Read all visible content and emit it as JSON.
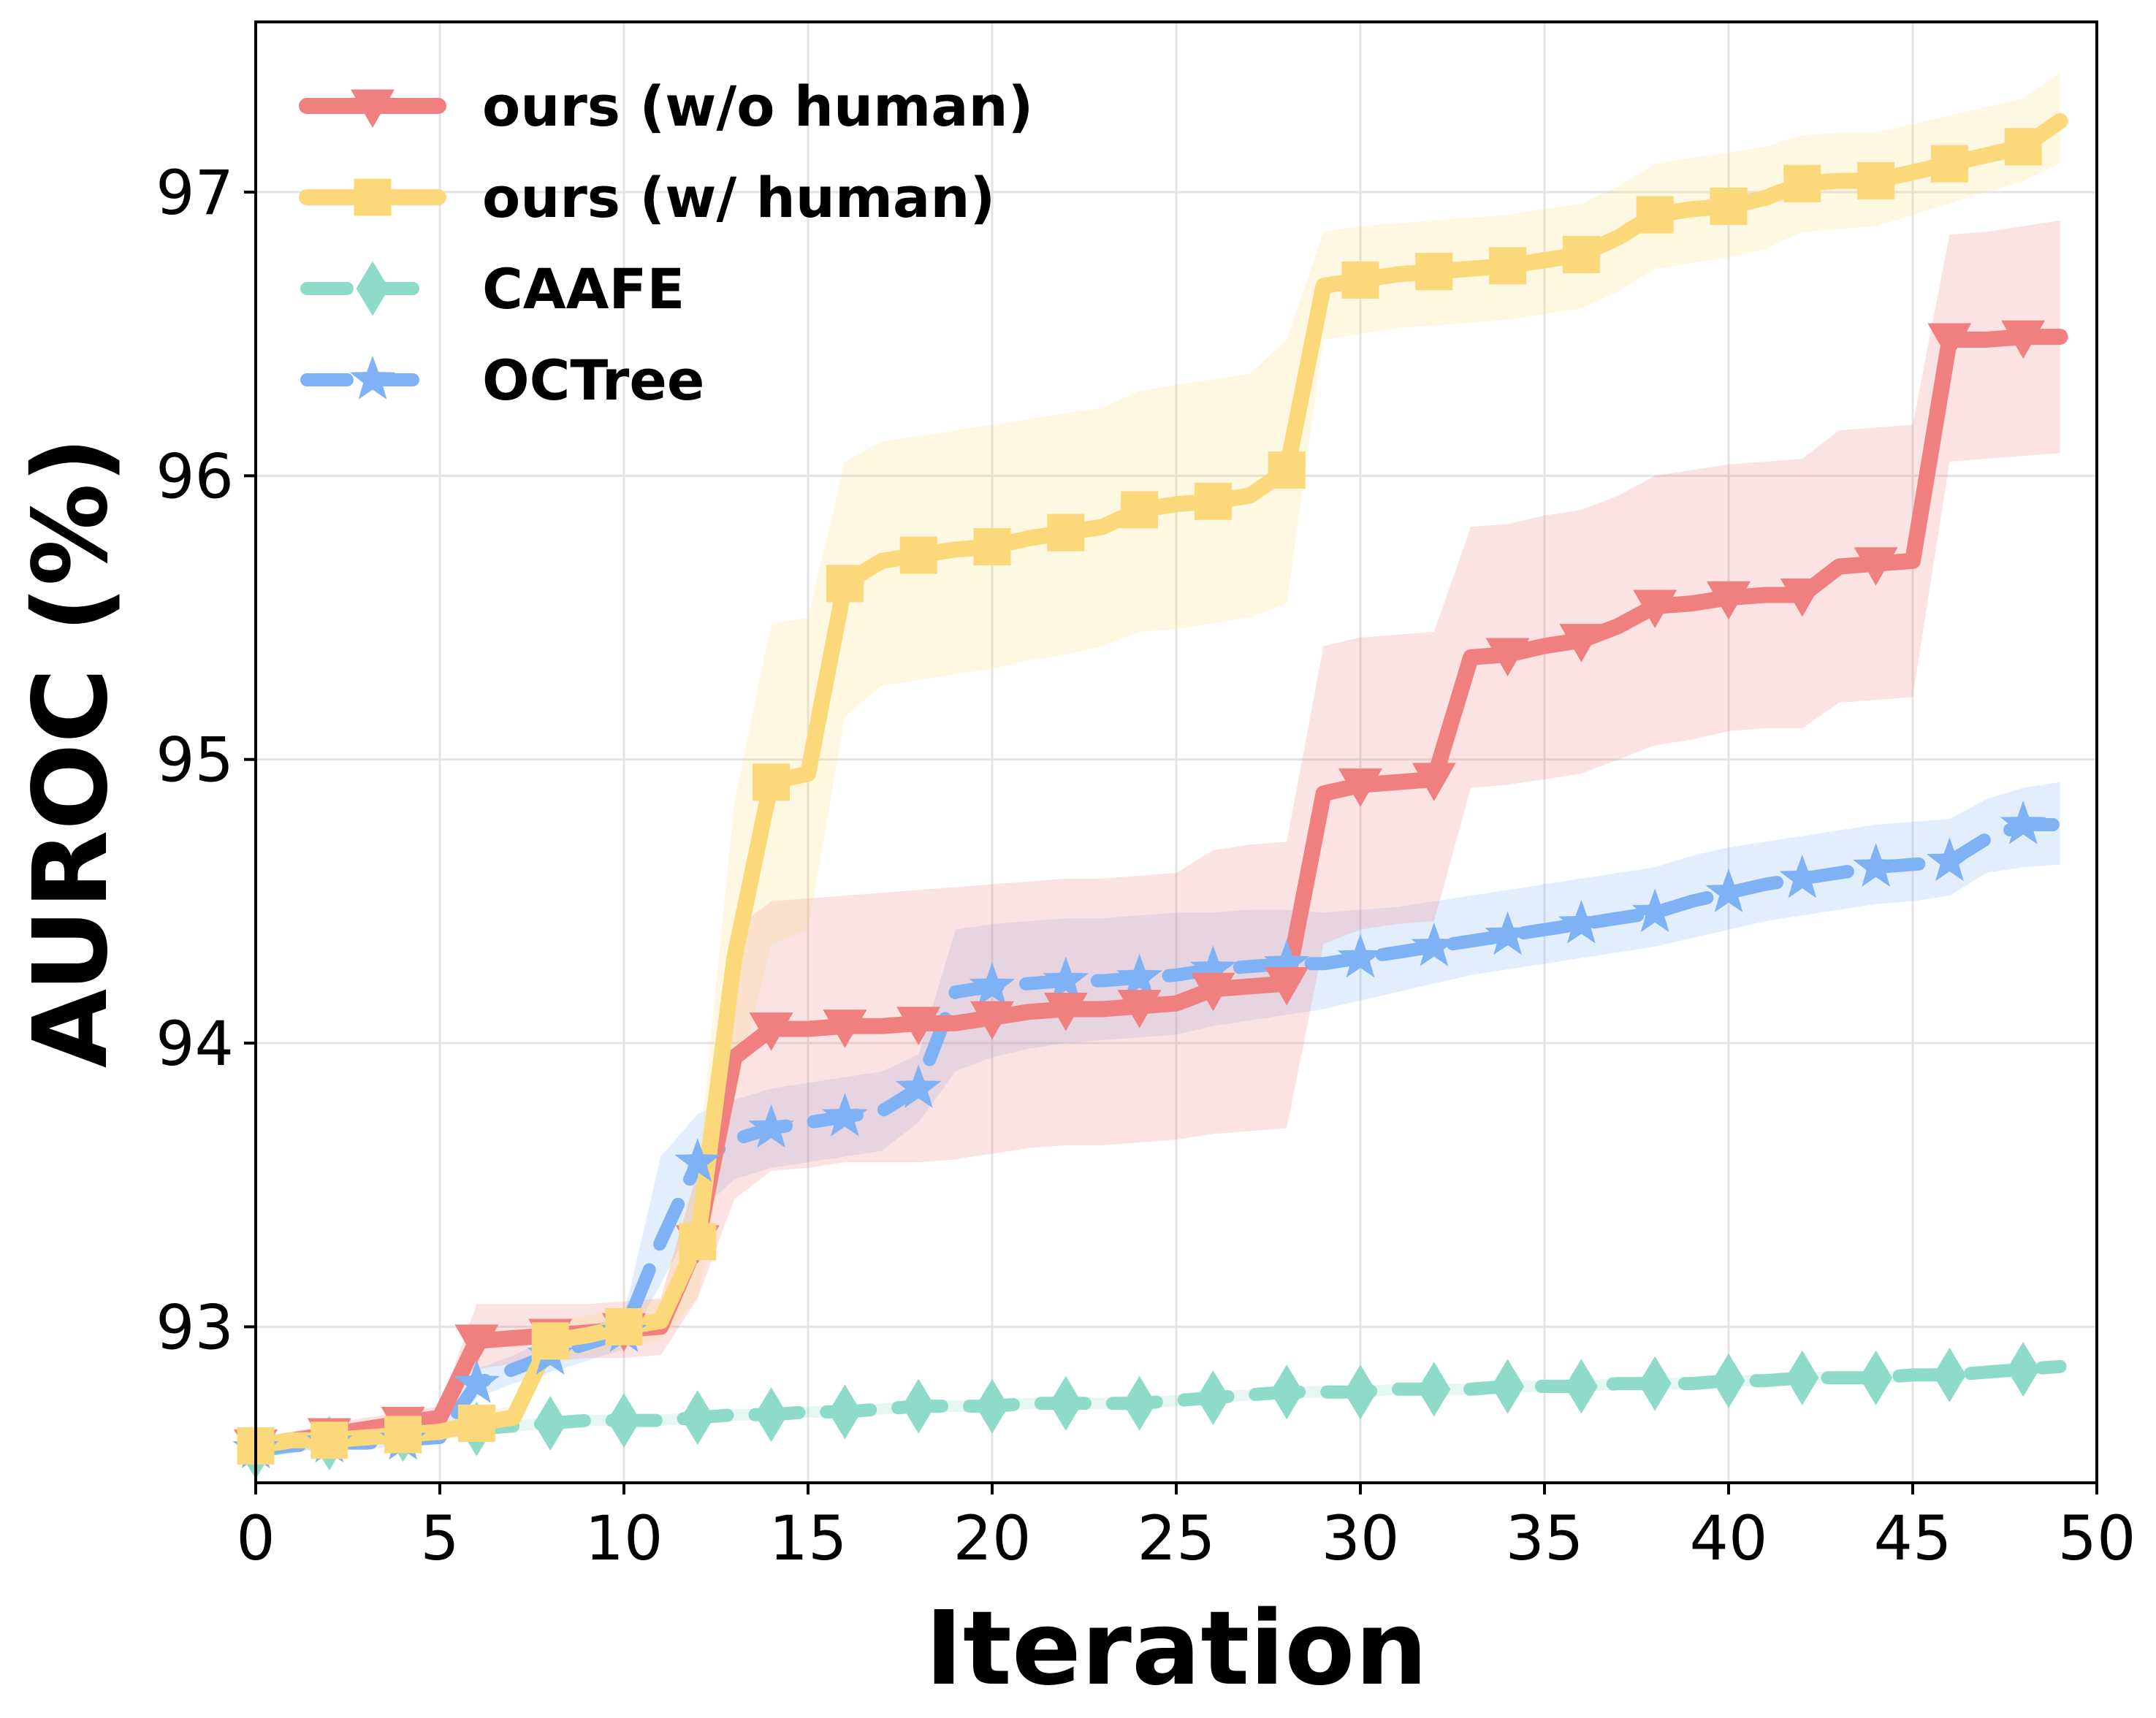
{
  "chart_data": {
    "type": "line",
    "xlabel": "Iteration",
    "ylabel": "AUROC (%)",
    "xlim": [
      0,
      50
    ],
    "ylim": [
      92.45,
      97.6
    ],
    "xticks": [
      0,
      5,
      10,
      15,
      20,
      25,
      30,
      35,
      40,
      45,
      50
    ],
    "yticks": [
      93,
      94,
      95,
      96,
      97
    ],
    "grid": true,
    "legend_position": "top-left",
    "series": [
      {
        "name": "ours (w/o human)",
        "color": "#f08080",
        "marker": "triangle-down",
        "line_style": "solid",
        "x": [
          0,
          1,
          2,
          3,
          4,
          5,
          6,
          7,
          8,
          9,
          10,
          11,
          12,
          13,
          14,
          15,
          16,
          17,
          18,
          19,
          20,
          21,
          22,
          23,
          24,
          25,
          26,
          27,
          28,
          29,
          30,
          31,
          32,
          33,
          34,
          35,
          36,
          37,
          38,
          39,
          40,
          41,
          42,
          43,
          44,
          45,
          46,
          47,
          48,
          49
        ],
        "y": [
          92.58,
          92.6,
          92.62,
          92.64,
          92.66,
          92.68,
          92.95,
          92.96,
          92.97,
          92.98,
          92.99,
          93.0,
          93.3,
          93.95,
          94.05,
          94.05,
          94.06,
          94.06,
          94.07,
          94.07,
          94.09,
          94.11,
          94.12,
          94.12,
          94.13,
          94.14,
          94.19,
          94.2,
          94.21,
          94.88,
          94.91,
          94.92,
          94.93,
          95.36,
          95.37,
          95.4,
          95.42,
          95.47,
          95.54,
          95.55,
          95.57,
          95.58,
          95.58,
          95.68,
          95.69,
          95.7,
          96.48,
          96.48,
          96.49,
          96.49
        ],
        "band_lower": [
          92.55,
          92.57,
          92.58,
          92.6,
          92.62,
          92.64,
          92.85,
          92.87,
          92.88,
          92.89,
          92.89,
          92.9,
          93.1,
          93.45,
          93.55,
          93.56,
          93.58,
          93.58,
          93.58,
          93.59,
          93.61,
          93.63,
          93.64,
          93.64,
          93.65,
          93.66,
          93.68,
          93.69,
          93.7,
          94.35,
          94.4,
          94.42,
          94.43,
          94.9,
          94.91,
          94.93,
          94.95,
          95.0,
          95.05,
          95.07,
          95.1,
          95.11,
          95.11,
          95.2,
          95.21,
          95.22,
          96.05,
          96.06,
          96.07,
          96.08
        ],
        "band_upper": [
          92.61,
          92.63,
          92.66,
          92.68,
          92.7,
          92.72,
          93.08,
          93.08,
          93.08,
          93.08,
          93.09,
          93.1,
          93.55,
          94.4,
          94.5,
          94.51,
          94.52,
          94.53,
          94.54,
          94.55,
          94.56,
          94.57,
          94.58,
          94.58,
          94.59,
          94.6,
          94.68,
          94.7,
          94.71,
          95.4,
          95.43,
          95.44,
          95.45,
          95.82,
          95.83,
          95.86,
          95.88,
          95.93,
          96.0,
          96.02,
          96.04,
          96.05,
          96.06,
          96.16,
          96.17,
          96.18,
          96.85,
          96.86,
          96.88,
          96.9
        ]
      },
      {
        "name": "ours (w/ human)",
        "color": "#fbd97a",
        "marker": "square",
        "line_style": "solid",
        "x": [
          0,
          1,
          2,
          3,
          4,
          5,
          6,
          7,
          8,
          9,
          10,
          11,
          12,
          13,
          14,
          15,
          16,
          17,
          18,
          19,
          20,
          21,
          22,
          23,
          24,
          25,
          26,
          27,
          28,
          29,
          30,
          31,
          32,
          33,
          34,
          35,
          36,
          37,
          38,
          39,
          40,
          41,
          42,
          43,
          44,
          45,
          46,
          47,
          48,
          49
        ],
        "y": [
          92.58,
          92.6,
          92.6,
          92.61,
          92.62,
          92.63,
          92.66,
          92.68,
          92.95,
          92.97,
          93.0,
          93.02,
          93.3,
          94.3,
          94.92,
          94.95,
          95.62,
          95.7,
          95.72,
          95.74,
          95.75,
          95.78,
          95.8,
          95.82,
          95.88,
          95.9,
          95.91,
          95.93,
          96.02,
          96.67,
          96.69,
          96.71,
          96.72,
          96.73,
          96.74,
          96.76,
          96.78,
          96.84,
          96.92,
          96.94,
          96.95,
          96.98,
          97.03,
          97.04,
          97.04,
          97.07,
          97.1,
          97.13,
          97.16,
          97.25
        ],
        "band_lower": [
          92.55,
          92.57,
          92.57,
          92.58,
          92.59,
          92.6,
          92.62,
          92.64,
          92.88,
          92.9,
          92.93,
          92.95,
          93.1,
          93.8,
          94.35,
          94.4,
          95.15,
          95.26,
          95.28,
          95.3,
          95.32,
          95.35,
          95.37,
          95.4,
          95.45,
          95.46,
          95.48,
          95.5,
          95.55,
          96.48,
          96.5,
          96.52,
          96.53,
          96.54,
          96.55,
          96.57,
          96.59,
          96.65,
          96.73,
          96.75,
          96.77,
          96.8,
          96.86,
          96.87,
          96.88,
          96.92,
          96.96,
          97.0,
          97.04,
          97.1
        ],
        "band_upper": [
          92.61,
          92.63,
          92.63,
          92.64,
          92.65,
          92.66,
          92.7,
          92.72,
          93.02,
          93.04,
          93.07,
          93.1,
          93.55,
          94.85,
          95.48,
          95.5,
          96.05,
          96.12,
          96.14,
          96.16,
          96.18,
          96.2,
          96.22,
          96.24,
          96.3,
          96.32,
          96.34,
          96.36,
          96.48,
          96.86,
          96.88,
          96.89,
          96.9,
          96.91,
          96.92,
          96.94,
          96.96,
          97.02,
          97.1,
          97.12,
          97.14,
          97.16,
          97.2,
          97.21,
          97.21,
          97.24,
          97.27,
          97.3,
          97.33,
          97.42
        ]
      },
      {
        "name": "CAAFE",
        "color": "#8fdbc9",
        "marker": "diamond",
        "line_style": "dashed",
        "x": [
          0,
          1,
          2,
          3,
          4,
          5,
          6,
          7,
          8,
          9,
          10,
          11,
          12,
          13,
          14,
          15,
          16,
          17,
          18,
          19,
          20,
          21,
          22,
          23,
          24,
          25,
          26,
          27,
          28,
          29,
          30,
          31,
          32,
          33,
          34,
          35,
          36,
          37,
          38,
          39,
          40,
          41,
          42,
          43,
          44,
          45,
          46,
          47,
          48,
          49
        ],
        "y": [
          92.56,
          92.58,
          92.59,
          92.61,
          92.62,
          92.63,
          92.64,
          92.65,
          92.66,
          92.67,
          92.67,
          92.67,
          92.68,
          92.69,
          92.69,
          92.7,
          92.7,
          92.71,
          92.72,
          92.72,
          92.72,
          92.73,
          92.73,
          92.73,
          92.73,
          92.74,
          92.75,
          92.76,
          92.77,
          92.77,
          92.77,
          92.78,
          92.78,
          92.78,
          92.79,
          92.79,
          92.79,
          92.8,
          92.8,
          92.8,
          92.81,
          92.81,
          92.82,
          92.82,
          92.82,
          92.83,
          92.83,
          92.84,
          92.85,
          92.86
        ],
        "band_lower": [
          92.54,
          92.56,
          92.57,
          92.59,
          92.6,
          92.61,
          92.62,
          92.63,
          92.64,
          92.65,
          92.65,
          92.65,
          92.66,
          92.67,
          92.67,
          92.68,
          92.68,
          92.69,
          92.7,
          92.7,
          92.7,
          92.71,
          92.71,
          92.71,
          92.71,
          92.72,
          92.73,
          92.74,
          92.75,
          92.75,
          92.75,
          92.76,
          92.76,
          92.76,
          92.77,
          92.77,
          92.77,
          92.78,
          92.78,
          92.78,
          92.79,
          92.79,
          92.8,
          92.8,
          92.8,
          92.81,
          92.81,
          92.82,
          92.83,
          92.84
        ],
        "band_upper": [
          92.58,
          92.6,
          92.61,
          92.63,
          92.64,
          92.65,
          92.66,
          92.67,
          92.68,
          92.69,
          92.69,
          92.69,
          92.7,
          92.71,
          92.71,
          92.72,
          92.72,
          92.73,
          92.74,
          92.74,
          92.74,
          92.75,
          92.75,
          92.75,
          92.75,
          92.76,
          92.77,
          92.78,
          92.79,
          92.79,
          92.79,
          92.8,
          92.8,
          92.8,
          92.81,
          92.81,
          92.81,
          92.82,
          92.82,
          92.82,
          92.83,
          92.83,
          92.84,
          92.84,
          92.84,
          92.85,
          92.85,
          92.86,
          92.87,
          92.88
        ]
      },
      {
        "name": "OCTree",
        "color": "#7fb2f5",
        "marker": "star",
        "line_style": "dashed",
        "x": [
          0,
          1,
          2,
          3,
          4,
          5,
          6,
          7,
          8,
          9,
          10,
          11,
          12,
          13,
          14,
          15,
          16,
          17,
          18,
          19,
          20,
          21,
          22,
          23,
          24,
          25,
          26,
          27,
          28,
          29,
          30,
          31,
          32,
          33,
          34,
          35,
          36,
          37,
          38,
          39,
          40,
          41,
          42,
          43,
          44,
          45,
          46,
          47,
          48,
          49
        ],
        "y": [
          92.57,
          92.58,
          92.59,
          92.59,
          92.6,
          92.61,
          92.8,
          92.85,
          92.9,
          92.94,
          92.98,
          93.3,
          93.58,
          93.66,
          93.7,
          93.72,
          93.74,
          93.76,
          93.84,
          94.18,
          94.2,
          94.21,
          94.22,
          94.22,
          94.23,
          94.24,
          94.26,
          94.27,
          94.28,
          94.28,
          94.3,
          94.32,
          94.34,
          94.36,
          94.38,
          94.4,
          94.42,
          94.44,
          94.46,
          94.5,
          94.53,
          94.56,
          94.58,
          94.6,
          94.62,
          94.63,
          94.64,
          94.72,
          94.77,
          94.77
        ],
        "band_lower": [
          92.55,
          92.56,
          92.57,
          92.57,
          92.58,
          92.59,
          92.75,
          92.8,
          92.84,
          92.88,
          92.92,
          93.15,
          93.4,
          93.52,
          93.56,
          93.58,
          93.6,
          93.62,
          93.72,
          93.9,
          93.95,
          93.98,
          94.0,
          94.01,
          94.02,
          94.03,
          94.06,
          94.08,
          94.1,
          94.12,
          94.15,
          94.18,
          94.21,
          94.24,
          94.26,
          94.28,
          94.3,
          94.32,
          94.34,
          94.37,
          94.4,
          94.43,
          94.45,
          94.47,
          94.49,
          94.5,
          94.52,
          94.6,
          94.62,
          94.63
        ],
        "band_upper": [
          92.59,
          92.6,
          92.61,
          92.61,
          92.62,
          92.63,
          92.85,
          92.9,
          92.96,
          93.0,
          93.04,
          93.6,
          93.75,
          93.8,
          93.84,
          93.86,
          93.88,
          93.9,
          93.96,
          94.4,
          94.42,
          94.43,
          94.44,
          94.44,
          94.45,
          94.46,
          94.46,
          94.47,
          94.47,
          94.46,
          94.47,
          94.48,
          94.5,
          94.52,
          94.54,
          94.56,
          94.58,
          94.6,
          94.62,
          94.66,
          94.69,
          94.71,
          94.73,
          94.75,
          94.77,
          94.78,
          94.79,
          94.86,
          94.9,
          94.92
        ]
      }
    ]
  }
}
